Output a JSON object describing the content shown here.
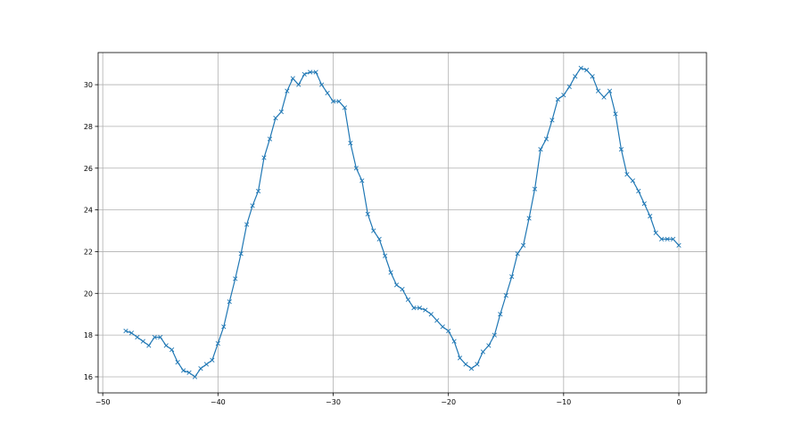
{
  "chart_data": {
    "type": "line",
    "title": "",
    "xlabel": "",
    "ylabel": "",
    "xlim": [
      -50.4,
      2.4
    ],
    "ylim": [
      15.23,
      31.54
    ],
    "grid": true,
    "marker": "x",
    "line_color": "#1f77b4",
    "xticks": [
      -50,
      -40,
      -30,
      -20,
      -10,
      0
    ],
    "xtick_labels": [
      "−50",
      "−40",
      "−30",
      "−20",
      "−10",
      "0"
    ],
    "yticks": [
      16,
      18,
      20,
      22,
      24,
      26,
      28,
      30
    ],
    "ytick_labels": [
      "16",
      "18",
      "20",
      "22",
      "24",
      "26",
      "28",
      "30"
    ],
    "series": [
      {
        "x": [
          -48,
          -47.5,
          -47,
          -46.5,
          -46,
          -45.5,
          -45,
          -44.5,
          -44,
          -43.5,
          -43,
          -42.5,
          -42,
          -41.5,
          -41,
          -40.5,
          -40,
          -39.5,
          -39,
          -38.5,
          -38,
          -37.5,
          -37,
          -36.5,
          -36,
          -35.5,
          -35,
          -34.5,
          -34,
          -33.5,
          -33,
          -32.5,
          -32,
          -31.5,
          -31,
          -30.5,
          -30,
          -29.5,
          -29,
          -28.5,
          -28,
          -27.5,
          -27,
          -26.5,
          -26,
          -25.5,
          -25,
          -24.5,
          -24,
          -23.5,
          -23,
          -22.5,
          -22,
          -21.5,
          -21,
          -20.5,
          -20,
          -19.5,
          -19,
          -18.5,
          -18,
          -17.5,
          -17,
          -16.5,
          -16,
          -15.5,
          -15,
          -14.5,
          -14,
          -13.5,
          -13,
          -12.5,
          -12,
          -11.5,
          -11,
          -10.5,
          -10,
          -9.5,
          -9,
          -8.5,
          -8,
          -7.5,
          -7,
          -6.5,
          -6,
          -5.5,
          -5,
          -4.5,
          -4,
          -3.5,
          -3,
          -2.5,
          -2,
          -1.5,
          -1,
          -0.5,
          0
        ],
        "y": [
          18.2,
          18.1,
          17.9,
          17.7,
          17.5,
          17.9,
          17.9,
          17.5,
          17.3,
          16.7,
          16.3,
          16.2,
          16.0,
          16.4,
          16.6,
          16.8,
          17.6,
          18.4,
          19.6,
          20.7,
          21.9,
          23.3,
          24.2,
          24.9,
          26.5,
          27.4,
          28.4,
          28.7,
          29.7,
          30.3,
          30.0,
          30.5,
          30.6,
          30.6,
          30.0,
          29.6,
          29.2,
          29.2,
          28.9,
          27.2,
          26.0,
          25.4,
          23.8,
          23.0,
          22.6,
          21.8,
          21.0,
          20.4,
          20.2,
          19.7,
          19.3,
          19.3,
          19.2,
          19.0,
          18.7,
          18.4,
          18.2,
          17.7,
          16.9,
          16.6,
          16.4,
          16.6,
          17.2,
          17.5,
          18.0,
          19.0,
          19.9,
          20.8,
          21.9,
          22.3,
          23.6,
          25.0,
          26.9,
          27.4,
          28.3,
          29.3,
          29.5,
          29.9,
          30.4,
          30.8,
          30.7,
          30.4,
          29.7,
          29.4,
          29.7,
          28.6,
          26.9,
          25.7,
          25.4,
          24.9,
          24.3,
          23.7,
          22.9,
          22.6,
          22.6,
          22.6,
          22.3
        ]
      }
    ]
  }
}
